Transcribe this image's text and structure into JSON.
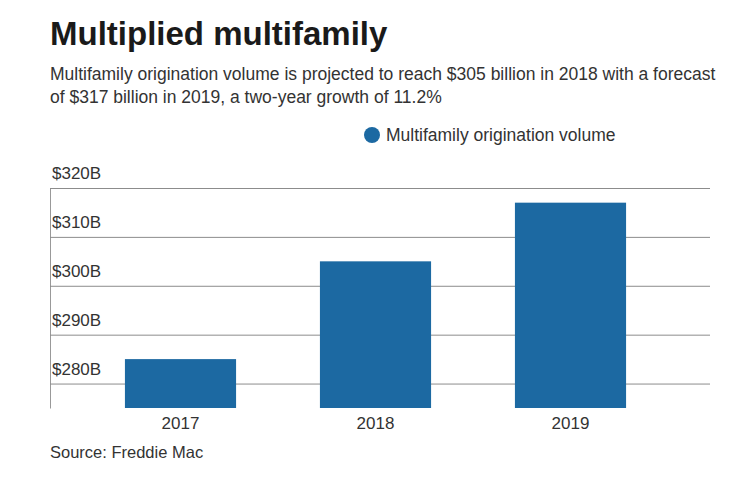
{
  "chart_data": {
    "type": "bar",
    "title": "Multiplied multifamily",
    "subtitle": "Multifamily origination volume is projected to reach $305 billion in 2018 with a forecast of $317 billion in 2019, a two-year growth of 11.2%",
    "source": "Source: Freddie Mac",
    "categories": [
      "2017",
      "2018",
      "2019"
    ],
    "series": [
      {
        "name": "Multifamily origination volume",
        "color": "#1c69a2",
        "values": [
          285,
          305,
          317
        ]
      }
    ],
    "ylim": [
      275,
      320
    ],
    "yticks": [
      {
        "value": 280,
        "label": "$280B"
      },
      {
        "value": 290,
        "label": "$290B"
      },
      {
        "value": 300,
        "label": "$300B"
      },
      {
        "value": 310,
        "label": "$310B"
      },
      {
        "value": 320,
        "label": "$320B"
      }
    ],
    "grid": true,
    "legend": "top-right"
  }
}
